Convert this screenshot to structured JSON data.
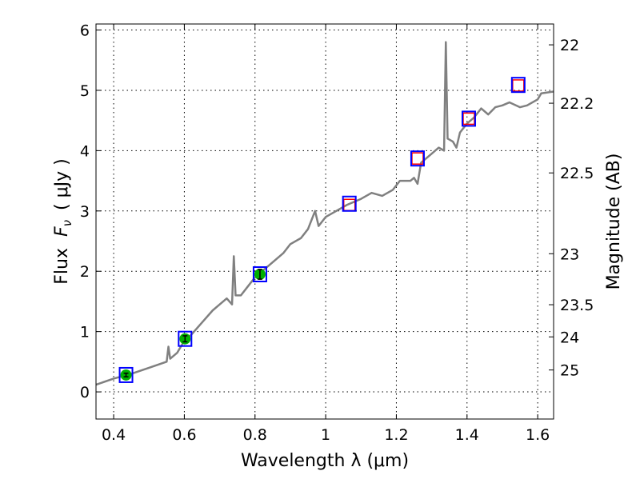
{
  "chart_data": {
    "type": "line",
    "title": "",
    "xlabel": "Wavelength  λ (μm)",
    "ylabel": "Flux  F_ν  ( μJy )",
    "ylabel_parts": {
      "prefix": "Flux",
      "symbol": "F",
      "sub": "ν",
      "unit": "( μJy )"
    },
    "y2label": "Magnitude (AB)",
    "xlim": [
      0.35,
      1.645
    ],
    "ylim": [
      -0.45,
      6.1
    ],
    "grid": true,
    "xticks": [
      0.4,
      0.6,
      0.8,
      1.0,
      1.2,
      1.4,
      1.6
    ],
    "xtick_labels": [
      "0.4",
      "0.6",
      "0.8",
      "1",
      "1.2",
      "1.4",
      "1.6"
    ],
    "yticks": [
      0,
      1,
      2,
      3,
      4,
      5,
      6
    ],
    "ytick_labels": [
      "0",
      "1",
      "2",
      "3",
      "4",
      "5",
      "6"
    ],
    "y2ticks": [
      22,
      22.2,
      22.5,
      23,
      23.5,
      24,
      25
    ],
    "y2tick_labels": [
      "22",
      "22.2",
      "22.5",
      "23",
      "23.5",
      "24",
      "25"
    ],
    "series": [
      {
        "name": "spectrum",
        "color": "#808080",
        "x": [
          0.35,
          0.4,
          0.45,
          0.5,
          0.55,
          0.555,
          0.56,
          0.58,
          0.6,
          0.62,
          0.65,
          0.68,
          0.7,
          0.72,
          0.735,
          0.74,
          0.745,
          0.76,
          0.78,
          0.8,
          0.82,
          0.85,
          0.88,
          0.9,
          0.93,
          0.95,
          0.97,
          0.98,
          1.0,
          1.03,
          1.06,
          1.1,
          1.13,
          1.16,
          1.19,
          1.21,
          1.24,
          1.25,
          1.26,
          1.27,
          1.3,
          1.32,
          1.335,
          1.34,
          1.345,
          1.36,
          1.37,
          1.38,
          1.4,
          1.42,
          1.44,
          1.46,
          1.48,
          1.5,
          1.52,
          1.55,
          1.57,
          1.6,
          1.61,
          1.645
        ],
        "y": [
          0.12,
          0.22,
          0.3,
          0.4,
          0.5,
          0.75,
          0.55,
          0.65,
          0.85,
          0.95,
          1.15,
          1.35,
          1.45,
          1.55,
          1.45,
          2.25,
          1.6,
          1.6,
          1.75,
          1.9,
          2.0,
          2.15,
          2.3,
          2.45,
          2.55,
          2.7,
          3.0,
          2.75,
          2.9,
          3.0,
          3.1,
          3.2,
          3.3,
          3.25,
          3.35,
          3.5,
          3.5,
          3.55,
          3.45,
          3.8,
          3.95,
          4.05,
          4.0,
          5.8,
          4.2,
          4.15,
          4.05,
          4.3,
          4.45,
          4.55,
          4.7,
          4.6,
          4.72,
          4.75,
          4.8,
          4.72,
          4.75,
          4.85,
          4.95,
          4.98
        ]
      },
      {
        "name": "model-photometry",
        "marker": "square",
        "color": "#0000ff",
        "x": [
          0.435,
          0.602,
          0.814,
          1.067,
          1.26,
          1.405,
          1.545
        ],
        "y": [
          0.28,
          0.88,
          1.95,
          3.12,
          3.87,
          4.53,
          5.09
        ]
      },
      {
        "name": "observed-photometry",
        "marker": "circle",
        "color": "#00b000",
        "x": [
          0.435,
          0.602,
          0.814
        ],
        "y": [
          0.28,
          0.88,
          1.95
        ],
        "yerr": [
          0.03,
          0.05,
          0.08
        ]
      },
      {
        "name": "upper-limits",
        "marker": "square-open",
        "color": "#ff0000",
        "x": [
          1.067,
          1.26,
          1.405,
          1.545
        ],
        "y": [
          3.1,
          3.87,
          4.53,
          5.08
        ]
      }
    ]
  }
}
